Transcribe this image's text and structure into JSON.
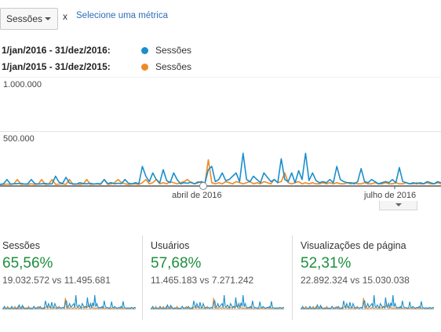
{
  "toolbar": {
    "metric_select_value": "Sessões",
    "close_label": "x",
    "select_metric_link": "Selecione uma métrica"
  },
  "legend": [
    {
      "range": "1/jan/2016 - 31/dez/2016:",
      "series": "Sessões",
      "color": "#1a8fcb"
    },
    {
      "range": "1/jan/2015 - 31/dez/2015:",
      "series": "Sessões",
      "color": "#ee8a25"
    }
  ],
  "chart_data": {
    "type": "line",
    "yticks": [
      "1.000.000",
      "500.000"
    ],
    "xticks": [
      "abril de 2016",
      "julho de 2016"
    ],
    "ylim": [
      0,
      1000000
    ],
    "grid": true,
    "series": [
      {
        "name": "1/jan/2016 - 31/dez/2016: Sessões",
        "color": "#1a8fcb",
        "values": [
          15000,
          20000,
          60000,
          18000,
          20000,
          22000,
          25000,
          18000,
          20000,
          60000,
          22000,
          18000,
          20000,
          24000,
          18000,
          20000,
          90000,
          35000,
          22000,
          80000,
          25000,
          20000,
          18000,
          30000,
          22000,
          20000,
          25000,
          18000,
          22000,
          20000,
          60000,
          22000,
          30000,
          20000,
          25000,
          22000,
          60000,
          25000,
          20000,
          30000,
          22000,
          180000,
          90000,
          40000,
          120000,
          60000,
          30000,
          150000,
          50000,
          30000,
          120000,
          60000,
          20000,
          30000,
          25000,
          35000,
          20000,
          30000,
          40000,
          25000,
          150000,
          180000,
          40000,
          60000,
          120000,
          50000,
          60000,
          90000,
          120000,
          40000,
          300000,
          60000,
          40000,
          90000,
          60000,
          30000,
          120000,
          80000,
          40000,
          60000,
          30000,
          250000,
          60000,
          40000,
          120000,
          30000,
          140000,
          60000,
          300000,
          50000,
          120000,
          50000,
          30000,
          40000,
          30000,
          60000,
          30000,
          180000,
          60000,
          40000,
          30000,
          30000,
          20000,
          40000,
          160000,
          40000,
          30000,
          60000,
          40000,
          20000,
          30000,
          40000,
          30000,
          60000,
          30000,
          170000,
          40000,
          30000,
          20000,
          30000,
          20000,
          30000,
          20000,
          40000,
          30000,
          20000,
          40000,
          30000
        ]
      },
      {
        "name": "1/jan/2015 - 31/dez/2015: Sessões",
        "color": "#ee8a25",
        "values": [
          15000,
          15000,
          18000,
          15000,
          20000,
          60000,
          15000,
          18000,
          15000,
          20000,
          15000,
          18000,
          60000,
          15000,
          18000,
          60000,
          15000,
          18000,
          20000,
          15000,
          60000,
          15000,
          18000,
          15000,
          20000,
          60000,
          15000,
          18000,
          20000,
          15000,
          60000,
          15000,
          20000,
          30000,
          60000,
          30000,
          20000,
          15000,
          18000,
          20000,
          15000,
          30000,
          60000,
          20000,
          30000,
          60000,
          20000,
          30000,
          20000,
          40000,
          30000,
          20000,
          30000,
          40000,
          60000,
          30000,
          20000,
          40000,
          30000,
          20000,
          240000,
          30000,
          20000,
          30000,
          20000,
          40000,
          30000,
          20000,
          40000,
          30000,
          20000,
          30000,
          40000,
          20000,
          30000,
          20000,
          40000,
          30000,
          20000,
          60000,
          30000,
          40000,
          120000,
          30000,
          20000,
          30000,
          40000,
          20000,
          30000,
          20000,
          30000,
          20000,
          20000,
          30000,
          20000,
          30000,
          20000,
          30000,
          20000,
          20000,
          30000,
          20000,
          30000,
          20000,
          20000,
          30000,
          20000,
          20000,
          30000,
          20000,
          20000,
          30000,
          20000,
          20000,
          30000,
          20000,
          20000,
          30000,
          20000,
          20000,
          30000,
          20000,
          20000,
          30000,
          20000,
          20000,
          30000,
          20000
        ]
      }
    ]
  },
  "kpis": [
    {
      "title": "Sessões",
      "change": "65,56%",
      "comparison": "19.032.572 vs 11.495.681"
    },
    {
      "title": "Usuários",
      "change": "57,68%",
      "comparison": "11.465.183 vs 7.271.242"
    },
    {
      "title": "Visualizações de página",
      "change": "52,31%",
      "comparison": "22.892.324 vs 15.030.038"
    }
  ]
}
